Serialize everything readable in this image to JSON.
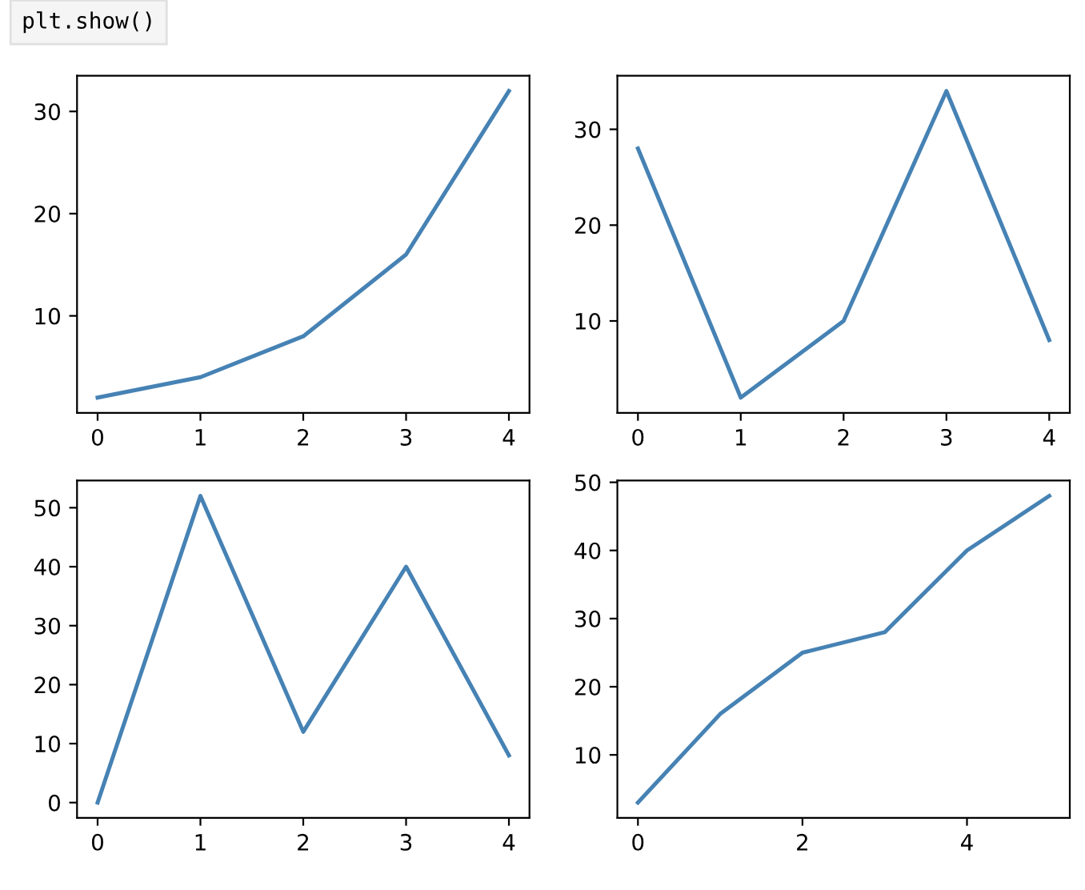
{
  "chart_data": [
    {
      "type": "line",
      "annotations": [
        "plt.show()"
      ],
      "x": [
        0,
        1,
        2,
        3,
        4
      ],
      "series": [
        {
          "color": "#4682b4",
          "values": [
            2,
            4,
            8,
            16,
            32
          ]
        }
      ],
      "xlim": [
        -0.2,
        4.2
      ],
      "xticks": [
        0,
        1,
        2,
        3,
        4
      ],
      "ylim": [
        0.5,
        33.5
      ],
      "yticks": [
        10,
        20,
        30
      ],
      "grid": false
    },
    {
      "type": "line",
      "x": [
        0,
        1,
        2,
        3,
        4
      ],
      "series": [
        {
          "color": "#4682b4",
          "values": [
            28,
            2,
            10,
            34,
            8
          ]
        }
      ],
      "xlim": [
        -0.2,
        4.2
      ],
      "xticks": [
        0,
        1,
        2,
        3,
        4
      ],
      "ylim": [
        0.4,
        35.6
      ],
      "yticks": [
        10,
        20,
        30
      ],
      "grid": false
    },
    {
      "type": "line",
      "x": [
        0,
        1,
        2,
        3,
        4
      ],
      "series": [
        {
          "color": "#4682b4",
          "values": [
            0,
            52,
            12,
            40,
            8
          ]
        }
      ],
      "xlim": [
        -0.2,
        4.2
      ],
      "xticks": [
        0,
        1,
        2,
        3,
        4
      ],
      "ylim": [
        -2.6,
        54.6
      ],
      "yticks": [
        0,
        10,
        20,
        30,
        40,
        50
      ],
      "grid": false
    },
    {
      "type": "line",
      "x": [
        0,
        1,
        2,
        3,
        4,
        5
      ],
      "series": [
        {
          "color": "#4682b4",
          "values": [
            3,
            16,
            25,
            28,
            40,
            48
          ]
        }
      ],
      "xlim": [
        -0.25,
        5.25
      ],
      "xticks": [
        0,
        2,
        4
      ],
      "ylim": [
        0.75,
        50.25
      ],
      "yticks": [
        10,
        20,
        30,
        40,
        50
      ],
      "grid": false
    }
  ]
}
